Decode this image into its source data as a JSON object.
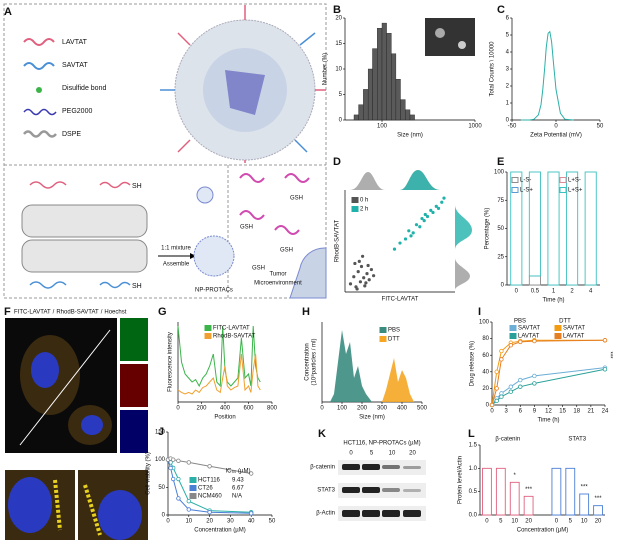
{
  "panel_A": {
    "label": "A",
    "legend": [
      "LAVTAT",
      "SAVTAT",
      "Disulfide bond",
      "PEG2000",
      "DSPE"
    ],
    "thiol": "SH",
    "mixture": "1:1 mixture",
    "assemble": "Assemble",
    "product": "NP-PROTACs",
    "reductant": "GSH",
    "environment": [
      "Tumor",
      "Microenvironment"
    ]
  },
  "panel_F": {
    "label": "F",
    "stains": [
      "FITC-LAVTAT",
      "RhodB-SAVTAT",
      "Hoechst"
    ],
    "separator": "/"
  },
  "panel_K": {
    "label": "K",
    "header": "HCT116, NP-PROTACs (µM)",
    "concentrations": [
      0,
      5,
      10,
      20
    ],
    "proteins": [
      "β-catenin",
      "STAT3",
      "β-Actin"
    ]
  },
  "chart_data": [
    {
      "label": "B",
      "type": "histogram",
      "x_label": "Size (nm)",
      "y_label": "Number (%)",
      "log_x": true,
      "xlim": [
        40,
        1000
      ],
      "xticks": [
        100,
        1000
      ],
      "ylim": [
        0,
        20
      ],
      "yticks": [
        0,
        5,
        10,
        15,
        20
      ],
      "bins": [
        50,
        56,
        63,
        71,
        79,
        89,
        100,
        112,
        126,
        141,
        158,
        178,
        200,
        224
      ],
      "values": [
        1,
        3,
        6,
        10,
        14,
        18,
        19,
        17,
        13,
        8,
        4,
        2,
        1
      ],
      "color": "#5a5a5a"
    },
    {
      "label": "C",
      "type": "line",
      "x_label": "Zeta Potential (mV)",
      "y_label": "Total Counts \\ 10000",
      "xlim": [
        -50,
        50
      ],
      "xticks": [
        -50,
        0,
        50
      ],
      "ylim": [
        0,
        6
      ],
      "yticks": [
        0,
        1,
        2,
        3,
        4,
        5,
        6
      ],
      "series": [
        {
          "color": "#2ab0a8",
          "x": [
            -40,
            -30,
            -25,
            -20,
            -17,
            -15,
            -13,
            -11,
            -9,
            -7,
            -5,
            -3,
            0,
            5,
            10,
            20
          ],
          "values": [
            0,
            0,
            0.05,
            0.3,
            0.9,
            1.8,
            3,
            4.3,
            5.1,
            5.2,
            4.6,
            3.4,
            1.8,
            0.4,
            0.05,
            0
          ]
        }
      ]
    },
    {
      "label": "D",
      "type": "scatter",
      "x_label": "FITC-LAVTAT",
      "y_label": "RhodB-SAVTAT",
      "xlim": [
        0,
        100
      ],
      "ylim": [
        0,
        100
      ],
      "series": [
        {
          "name": "0 h",
          "color": "#555555",
          "x": [
            5,
            8,
            10,
            12,
            14,
            15,
            17,
            18,
            20,
            22,
            24,
            9,
            13,
            19,
            26,
            11,
            16,
            21
          ],
          "values": [
            8,
            15,
            5,
            20,
            10,
            25,
            14,
            6,
            18,
            12,
            22,
            28,
            30,
            9,
            16,
            3,
            35,
            26
          ]
        },
        {
          "name": "2 h",
          "color": "#20b2aa",
          "x": [
            45,
            50,
            55,
            58,
            62,
            65,
            68,
            70,
            72,
            75,
            78,
            80,
            83,
            85,
            88,
            60,
            73,
            90
          ],
          "values": [
            42,
            48,
            52,
            60,
            58,
            66,
            64,
            72,
            70,
            74,
            80,
            78,
            84,
            82,
            88,
            55,
            76,
            92
          ]
        }
      ]
    },
    {
      "label": "E",
      "type": "bar",
      "stacked": true,
      "x_label": "Time (h)",
      "y_label": "Percentage (%)",
      "categories": [
        "0",
        "0.5",
        "1",
        "2",
        "4"
      ],
      "ylim": [
        0,
        100
      ],
      "yticks": [
        0,
        25,
        50,
        75,
        100
      ],
      "series": [
        {
          "name": "L-S-",
          "color": "#8c8c8c",
          "values": [
            0,
            8,
            0,
            0,
            0
          ]
        },
        {
          "name": "L+S-",
          "color": "#e08a9a",
          "values": [
            0,
            0,
            0,
            0,
            0
          ]
        },
        {
          "name": "L-S+",
          "color": "#5b9bd5",
          "values": [
            0,
            0,
            0,
            0,
            0
          ]
        },
        {
          "name": "L+S+",
          "color": "#3cc1c1",
          "values": [
            100,
            92,
            100,
            100,
            100
          ]
        }
      ]
    },
    {
      "label": "G",
      "type": "line",
      "x_label": "Position",
      "y_label": "Fluorescence intensity",
      "xlim": [
        0,
        800
      ],
      "xticks": [
        0,
        200,
        400,
        600,
        800
      ],
      "ylim": [
        0,
        100
      ],
      "x": [
        0,
        30,
        60,
        90,
        120,
        150,
        180,
        210,
        240,
        270,
        300,
        330,
        360,
        380,
        400,
        420,
        450,
        480,
        510,
        540,
        570,
        600,
        620,
        640,
        660,
        680,
        700
      ],
      "series": [
        {
          "name": "FITC-LAVTAT",
          "color": "#3bb54a",
          "values": [
            95,
            50,
            35,
            30,
            25,
            28,
            20,
            30,
            35,
            45,
            60,
            25,
            20,
            95,
            40,
            25,
            20,
            25,
            30,
            80,
            30,
            35,
            20,
            95,
            45,
            30,
            25
          ]
        },
        {
          "name": "RhodB-SAVTAT",
          "color": "#f0a030",
          "values": [
            15,
            12,
            10,
            12,
            10,
            15,
            12,
            18,
            20,
            25,
            30,
            15,
            12,
            30,
            45,
            20,
            15,
            18,
            20,
            60,
            15,
            20,
            12,
            40,
            60,
            20,
            15
          ]
        }
      ]
    },
    {
      "label": "H",
      "type": "area",
      "x_label": "Size (nm)",
      "y_label": [
        "Concentration",
        "(10⁸particles / ml)"
      ],
      "xlim": [
        0,
        500
      ],
      "xticks": [
        0,
        100,
        200,
        300,
        400,
        500
      ],
      "ylim": [
        0,
        100
      ],
      "x": [
        0,
        40,
        60,
        80,
        100,
        120,
        140,
        160,
        180,
        200,
        220,
        250,
        280,
        300,
        320,
        340,
        360,
        380,
        400,
        420,
        440,
        460,
        500
      ],
      "series": [
        {
          "name": "PBS",
          "color": "#3a8c80",
          "values": [
            0,
            0,
            10,
            50,
            90,
            60,
            75,
            30,
            45,
            20,
            10,
            0,
            0,
            0,
            0,
            0,
            0,
            0,
            0,
            0,
            0,
            0,
            0
          ]
        },
        {
          "name": "DTT",
          "color": "#f5a623",
          "values": [
            0,
            0,
            0,
            0,
            0,
            0,
            0,
            0,
            0,
            0,
            0,
            0,
            0,
            0,
            15,
            35,
            55,
            25,
            40,
            30,
            10,
            0,
            0
          ]
        }
      ]
    },
    {
      "label": "I",
      "type": "line",
      "markers": true,
      "x_label": "Time (h)",
      "y_label": "Drug release (%)",
      "xlim": [
        0,
        24
      ],
      "xticks": [
        0,
        3,
        6,
        9,
        12,
        15,
        18,
        21,
        24
      ],
      "ylim": [
        0,
        100
      ],
      "yticks": [
        0,
        20,
        40,
        60,
        80,
        100
      ],
      "legend_groups": [
        "PBS",
        "DTT"
      ],
      "annotation": "***",
      "x": [
        0,
        1,
        2,
        4,
        6,
        9,
        24
      ],
      "series": [
        {
          "name": "SAVTAT",
          "color": "#6baed6",
          "values": [
            0,
            8,
            14,
            22,
            30,
            35,
            45
          ]
        },
        {
          "name": "LAVTAT",
          "color": "#2aa198",
          "values": [
            0,
            5,
            10,
            16,
            22,
            26,
            43
          ]
        },
        {
          "name": "SAVTAT",
          "color": "#f39c12",
          "values": [
            0,
            40,
            65,
            75,
            77,
            78,
            78
          ]
        },
        {
          "name": "LAVTAT",
          "color": "#e67e22",
          "values": [
            0,
            20,
            55,
            72,
            76,
            77,
            78
          ]
        }
      ]
    },
    {
      "label": "J",
      "type": "line",
      "markers": true,
      "x_label": "Concentration (µM)",
      "y_label": "Cell viability (%)",
      "xlim": [
        0,
        50
      ],
      "xticks": [
        0,
        10,
        20,
        30,
        40,
        50
      ],
      "ylim": [
        0,
        150
      ],
      "yticks": [
        0,
        50,
        100,
        150
      ],
      "legend_title": "IC₅₀ (µM)",
      "x": [
        0,
        1.25,
        2.5,
        5,
        10,
        20,
        40
      ],
      "series": [
        {
          "name": "HCT116",
          "color": "#2ab0a8",
          "ic50": 9.43,
          "values": [
            100,
            95,
            85,
            65,
            25,
            8,
            5
          ]
        },
        {
          "name": "CT26",
          "color": "#4a7fd6",
          "ic50": 6.67,
          "values": [
            100,
            85,
            65,
            30,
            10,
            5,
            3
          ]
        },
        {
          "name": "NCM460",
          "color": "#888888",
          "ic50": "N/A",
          "values": [
            100,
            102,
            100,
            98,
            95,
            88,
            75
          ]
        }
      ]
    },
    {
      "label": "L",
      "type": "bar",
      "x_label": "Concentration (µM)",
      "y_label": "Protein level/Actin",
      "categories": [
        "0",
        "5",
        "10",
        "20"
      ],
      "ylim": [
        0,
        1.5
      ],
      "yticks": [
        {
          "value": 0,
          "label": "0.0"
        },
        {
          "value": 0.5,
          "label": "0.5"
        },
        {
          "value": 1,
          "label": "1.0"
        },
        {
          "value": 1.5,
          "label": "1.5"
        }
      ],
      "groups": [
        {
          "name": "β-catenin",
          "color": "#e0607e",
          "values": [
            1.0,
            1.0,
            0.7,
            0.4
          ],
          "significance": [
            null,
            null,
            "*",
            "***"
          ]
        },
        {
          "name": "STAT3",
          "color": "#4a7fd6",
          "values": [
            1.0,
            1.0,
            0.45,
            0.2
          ],
          "significance": [
            null,
            null,
            "***",
            "***"
          ]
        }
      ]
    }
  ]
}
